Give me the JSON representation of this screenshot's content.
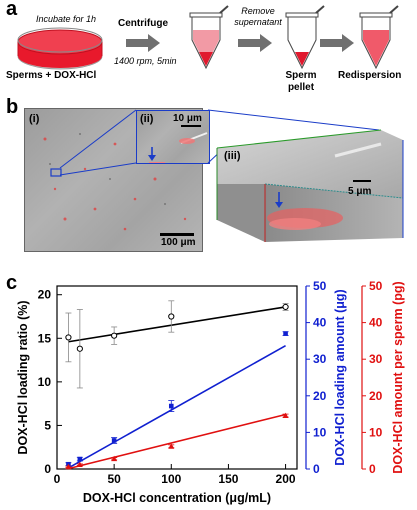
{
  "panel_a": {
    "label": "a",
    "dish_caption": "Incubate for 1h",
    "dish_label": "Sperms + DOX-HCl",
    "step1_title": "Centrifuge",
    "step1_params": "1400 rpm, 5min",
    "step2_title_line1": "Remove",
    "step2_title_line2": "supernatant",
    "pellet_line1": "Sperm",
    "pellet_line2": "pellet",
    "redispersion": "Redispersion"
  },
  "panel_b": {
    "label": "b",
    "sub_i": "(i)",
    "sub_ii": "(ii)",
    "sub_iii": "(iii)",
    "scale_i": "100 μm",
    "scale_ii": "10 μm",
    "scale_iii": "5 μm"
  },
  "panel_c": {
    "label": "c"
  },
  "colors": {
    "black_series": "#000000",
    "blue_series": "#1020d0",
    "red_series": "#e01010",
    "callout_blue": "#1a3cc8"
  },
  "chart_data": {
    "type": "scatter",
    "xlabel": "DOX-HCl concentration (μg/mL)",
    "xlim": [
      0,
      210
    ],
    "xticks": [
      0,
      50,
      100,
      150,
      200
    ],
    "axes": {
      "left": {
        "label": "DOX-HCl loading ratio (%)",
        "ylim": [
          0,
          21
        ],
        "ticks": [
          0,
          5,
          10,
          15,
          20
        ],
        "color": "#000000"
      },
      "right_blue": {
        "label": "DOX-HCl loading amount (μg)",
        "ylim": [
          0,
          50
        ],
        "ticks": [
          0,
          10,
          20,
          30,
          40,
          50
        ],
        "color": "#1020d0"
      },
      "right_red": {
        "label": "DOX-HCl amount per sperm (pg)",
        "ylim": [
          0,
          50
        ],
        "ticks": [
          0,
          10,
          20,
          30,
          40,
          50
        ],
        "color": "#e01010"
      }
    },
    "series": [
      {
        "axis": "left",
        "color": "#000000",
        "marker": "circle",
        "x": [
          10,
          20,
          50,
          100,
          200
        ],
        "y": [
          15.1,
          13.8,
          15.3,
          17.5,
          18.6
        ],
        "err": [
          2.8,
          4.5,
          1.0,
          1.8,
          0.4
        ],
        "fit": [
          [
            10,
            14.6
          ],
          [
            200,
            18.6
          ]
        ]
      },
      {
        "axis": "right_blue",
        "color": "#1020d0",
        "marker": "square",
        "x": [
          10,
          20,
          50,
          100,
          200
        ],
        "y": [
          1.3,
          2.7,
          7.8,
          17.2,
          37.0
        ],
        "err": [
          0.4,
          0.5,
          0.8,
          1.5,
          0.5
        ],
        "fit": [
          [
            10,
            0.3
          ],
          [
            200,
            33.7
          ]
        ]
      },
      {
        "axis": "right_red",
        "color": "#e01010",
        "marker": "triangle",
        "x": [
          10,
          20,
          50,
          100,
          200
        ],
        "y": [
          0.6,
          1.2,
          2.8,
          6.2,
          14.6
        ],
        "err": [
          0.2,
          0.2,
          0.3,
          0.4,
          0.4
        ],
        "fit": [
          [
            10,
            0.1
          ],
          [
            200,
            14.9
          ]
        ]
      }
    ]
  }
}
